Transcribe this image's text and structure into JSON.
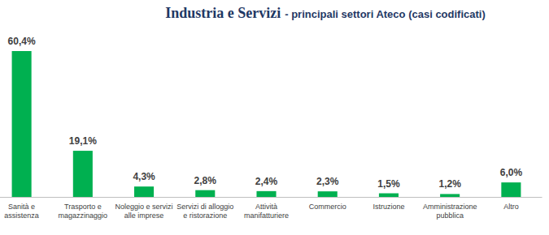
{
  "chart_data": {
    "type": "bar",
    "title": "Industria e Servizi",
    "subtitle": "- principali settori Ateco (casi codificati)",
    "categories": [
      "Sanità e assistenza",
      "Trasporto e magazzinaggio",
      "Noleggio e servizi alle imprese",
      "Servizi di alloggio e ristorazione",
      "Attività manifatturiere",
      "Commercio",
      "Istruzione",
      "Amministrazione pubblica",
      "Altro"
    ],
    "values": [
      60.4,
      19.1,
      4.3,
      2.8,
      2.4,
      2.3,
      1.5,
      1.2,
      6.0
    ],
    "value_labels": [
      "60,4%",
      "19,1%",
      "4,3%",
      "2,8%",
      "2,4%",
      "2,3%",
      "1,5%",
      "1,2%",
      "6,0%"
    ],
    "color": "#00b050",
    "data_labels": true,
    "tick_labels": "x",
    "grid": false
  }
}
